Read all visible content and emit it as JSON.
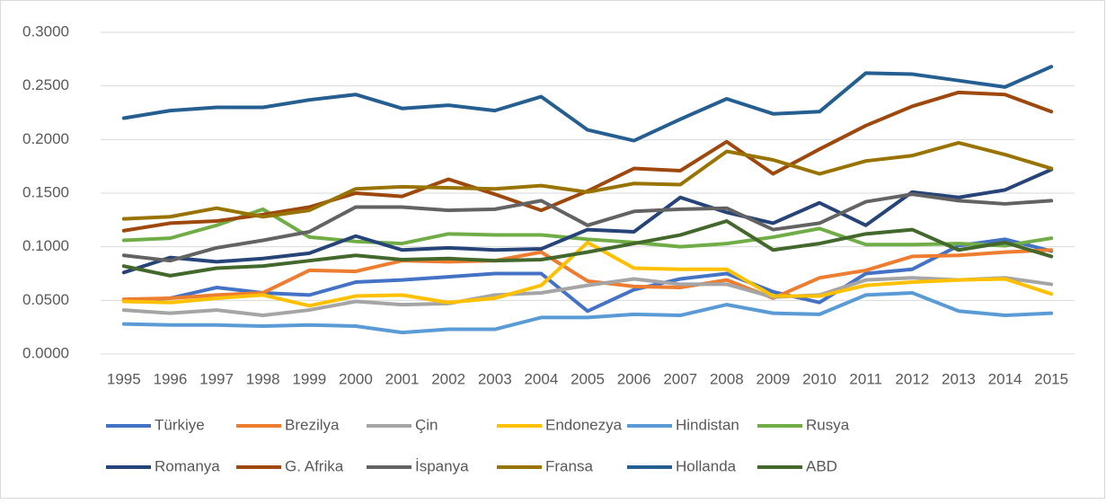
{
  "chart_data": {
    "type": "line",
    "categories": [
      "1995",
      "1996",
      "1997",
      "1998",
      "1999",
      "2000",
      "2001",
      "2002",
      "2003",
      "2004",
      "2005",
      "2006",
      "2007",
      "2008",
      "2009",
      "2010",
      "2011",
      "2012",
      "2013",
      "2014",
      "2015"
    ],
    "ylim": [
      0,
      0.3
    ],
    "yticks": [
      {
        "value": 0,
        "label": "0.0000"
      },
      {
        "value": 0.05,
        "label": "0.0500"
      },
      {
        "value": 0.1,
        "label": "0.1000"
      },
      {
        "value": 0.15,
        "label": "0.1500"
      },
      {
        "value": 0.2,
        "label": "0.2000"
      },
      {
        "value": 0.25,
        "label": "0.2500"
      },
      {
        "value": 0.3,
        "label": "0.3000"
      }
    ],
    "grid": true,
    "legend": "bottom",
    "series": [
      {
        "name": "Türkiye",
        "color": "#4472c4",
        "values": [
          0.05,
          0.052,
          0.062,
          0.057,
          0.055,
          0.067,
          0.069,
          0.072,
          0.075,
          0.075,
          0.04,
          0.06,
          0.07,
          0.075,
          0.058,
          0.048,
          0.075,
          0.079,
          0.101,
          0.107,
          0.096
        ]
      },
      {
        "name": "Brezilya",
        "color": "#ed7d31",
        "values": [
          0.051,
          0.052,
          0.055,
          0.057,
          0.078,
          0.077,
          0.087,
          0.086,
          0.087,
          0.095,
          0.068,
          0.063,
          0.062,
          0.069,
          0.052,
          0.071,
          0.078,
          0.091,
          0.092,
          0.095,
          0.097
        ]
      },
      {
        "name": "Çin",
        "color": "#a5a5a5",
        "values": [
          0.041,
          0.038,
          0.041,
          0.036,
          0.041,
          0.049,
          0.046,
          0.047,
          0.055,
          0.057,
          0.064,
          0.07,
          0.065,
          0.065,
          0.053,
          0.055,
          0.069,
          0.071,
          0.069,
          0.071,
          0.065
        ]
      },
      {
        "name": "Endonezya",
        "color": "#ffc000",
        "values": [
          0.049,
          0.048,
          0.052,
          0.055,
          0.045,
          0.054,
          0.055,
          0.048,
          0.052,
          0.064,
          0.104,
          0.08,
          0.079,
          0.079,
          0.054,
          0.054,
          0.064,
          0.067,
          0.069,
          0.07,
          0.056
        ]
      },
      {
        "name": "Hindistan",
        "color": "#5b9bd5",
        "values": [
          0.028,
          0.027,
          0.027,
          0.026,
          0.027,
          0.026,
          0.02,
          0.023,
          0.023,
          0.034,
          0.034,
          0.037,
          0.036,
          0.046,
          0.038,
          0.037,
          0.055,
          0.057,
          0.04,
          0.036,
          0.038
        ]
      },
      {
        "name": "Rusya",
        "color": "#70ad47",
        "values": [
          0.106,
          0.108,
          0.12,
          0.135,
          0.109,
          0.105,
          0.103,
          0.112,
          0.111,
          0.111,
          0.107,
          0.104,
          0.1,
          0.103,
          0.109,
          0.117,
          0.102,
          0.102,
          0.103,
          0.101,
          0.108
        ]
      },
      {
        "name": "Romanya",
        "color": "#264478",
        "values": [
          0.076,
          0.09,
          0.086,
          0.089,
          0.094,
          0.11,
          0.097,
          0.099,
          0.097,
          0.098,
          0.116,
          0.114,
          0.146,
          0.132,
          0.122,
          0.141,
          0.12,
          0.151,
          0.146,
          0.153,
          0.172
        ]
      },
      {
        "name": "G. Afrika",
        "color": "#9e480e",
        "values": [
          0.115,
          0.122,
          0.124,
          0.13,
          0.137,
          0.15,
          0.147,
          0.163,
          0.149,
          0.134,
          0.152,
          0.173,
          0.171,
          0.198,
          0.168,
          0.191,
          0.213,
          0.231,
          0.244,
          0.242,
          0.226
        ]
      },
      {
        "name": "İspanya",
        "color": "#636363",
        "values": [
          0.092,
          0.087,
          0.099,
          0.106,
          0.114,
          0.137,
          0.137,
          0.134,
          0.135,
          0.143,
          0.12,
          0.133,
          0.135,
          0.136,
          0.116,
          0.122,
          0.142,
          0.149,
          0.143,
          0.14,
          0.143
        ]
      },
      {
        "name": "Fransa",
        "color": "#997300",
        "values": [
          0.126,
          0.128,
          0.136,
          0.128,
          0.134,
          0.154,
          0.156,
          0.155,
          0.154,
          0.157,
          0.151,
          0.159,
          0.158,
          0.189,
          0.181,
          0.168,
          0.18,
          0.185,
          0.197,
          0.186,
          0.173
        ]
      },
      {
        "name": "Hollanda",
        "color": "#255e91",
        "values": [
          0.22,
          0.227,
          0.23,
          0.23,
          0.237,
          0.242,
          0.229,
          0.232,
          0.227,
          0.24,
          0.209,
          0.199,
          0.219,
          0.238,
          0.224,
          0.226,
          0.262,
          0.261,
          0.255,
          0.249,
          0.268
        ]
      },
      {
        "name": "ABD",
        "color": "#43682b",
        "values": [
          0.082,
          0.073,
          0.08,
          0.082,
          0.087,
          0.092,
          0.088,
          0.089,
          0.087,
          0.088,
          0.095,
          0.103,
          0.111,
          0.124,
          0.097,
          0.103,
          0.112,
          0.116,
          0.097,
          0.104,
          0.091
        ]
      }
    ]
  }
}
